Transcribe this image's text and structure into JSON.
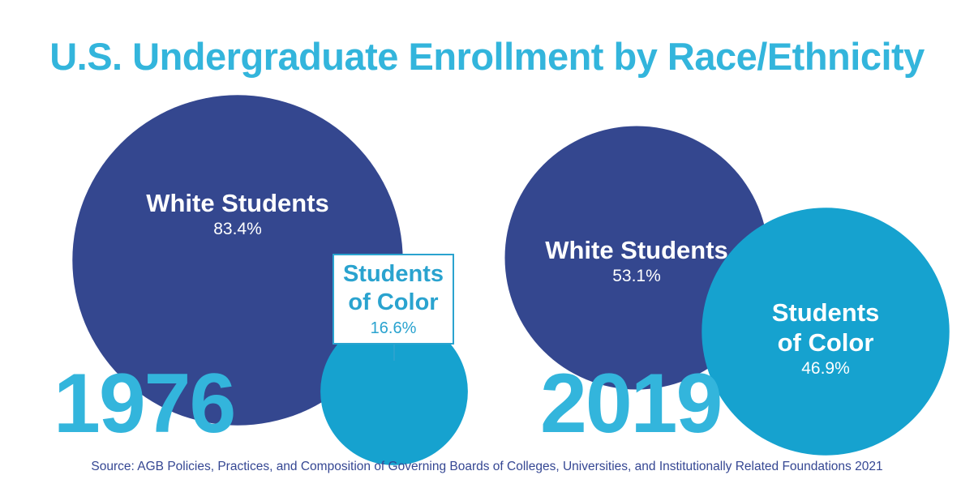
{
  "title": "U.S. Undergraduate Enrollment by Race/Ethnicity",
  "source": "Source: AGB Policies, Practices, and Composition of Governing Boards of Colleges, Universities, and Institutionally Related Foundations 2021",
  "colors": {
    "title": "#33b5dc",
    "white_students": "#34478f",
    "students_of_color": "#16a2cf",
    "year": "#33b5dc"
  },
  "chart_data": [
    {
      "type": "bubble",
      "year": "1976",
      "series": [
        {
          "name": "White Students",
          "value": 83.4,
          "label": "83.4%"
        },
        {
          "name": "Students of Color",
          "name_lines": [
            "Students",
            "of Color"
          ],
          "value": 16.6,
          "label": "16.6%"
        }
      ]
    },
    {
      "type": "bubble",
      "year": "2019",
      "series": [
        {
          "name": "White Students",
          "value": 53.1,
          "label": "53.1%"
        },
        {
          "name": "Students of Color",
          "name_lines": [
            "Students",
            "of Color"
          ],
          "value": 46.9,
          "label": "46.9%"
        }
      ]
    }
  ]
}
